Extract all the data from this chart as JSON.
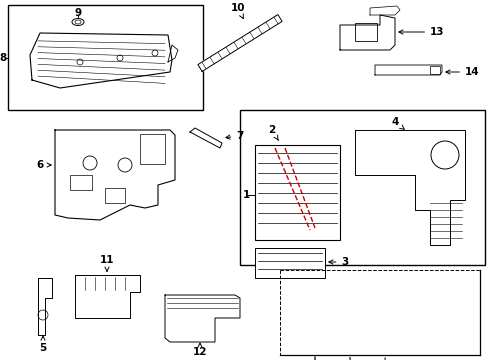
{
  "bg_color": "#ffffff",
  "lc": "#000000",
  "rc": "#cc0000",
  "figsize": [
    4.89,
    3.6
  ],
  "dpi": 100
}
